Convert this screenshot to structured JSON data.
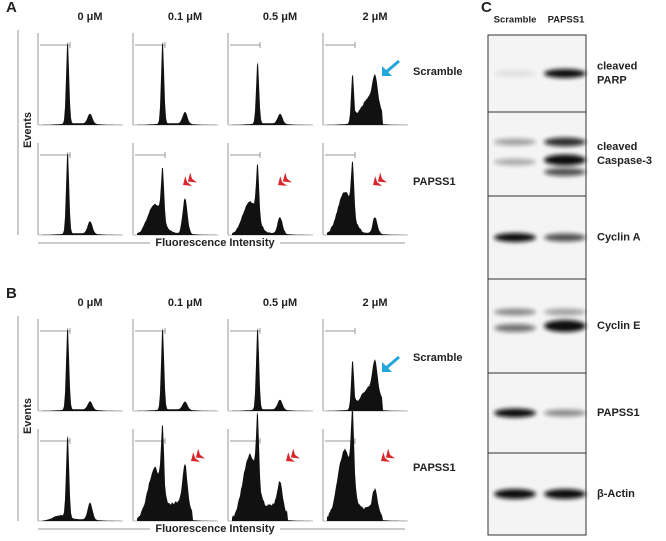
{
  "panels": [
    {
      "label": "A",
      "concentrations": [
        "0 μM",
        "0.1 μM",
        "0.5 μM",
        "2 μM"
      ],
      "rows": [
        "Scramble",
        "PAPSS1"
      ],
      "y_axis": "Events",
      "x_axis": "Fluorescence Intensity"
    },
    {
      "label": "B",
      "concentrations": [
        "0 μM",
        "0.1 μM",
        "0.5 μM",
        "2 μM"
      ],
      "rows": [
        "Scramble",
        "PAPSS1"
      ],
      "y_axis": "Events",
      "x_axis": "Fluorescence Intensity"
    }
  ],
  "blot": {
    "label": "C",
    "columns": [
      "Scramble",
      "PAPSS1"
    ],
    "rows": [
      [
        "cleaved",
        "PARP"
      ],
      [
        "cleaved",
        "Caspase-3"
      ],
      [
        "Cyclin A"
      ],
      [
        "Cyclin E"
      ],
      [
        "PAPSS1"
      ],
      [
        "β-Actin"
      ]
    ]
  }
}
